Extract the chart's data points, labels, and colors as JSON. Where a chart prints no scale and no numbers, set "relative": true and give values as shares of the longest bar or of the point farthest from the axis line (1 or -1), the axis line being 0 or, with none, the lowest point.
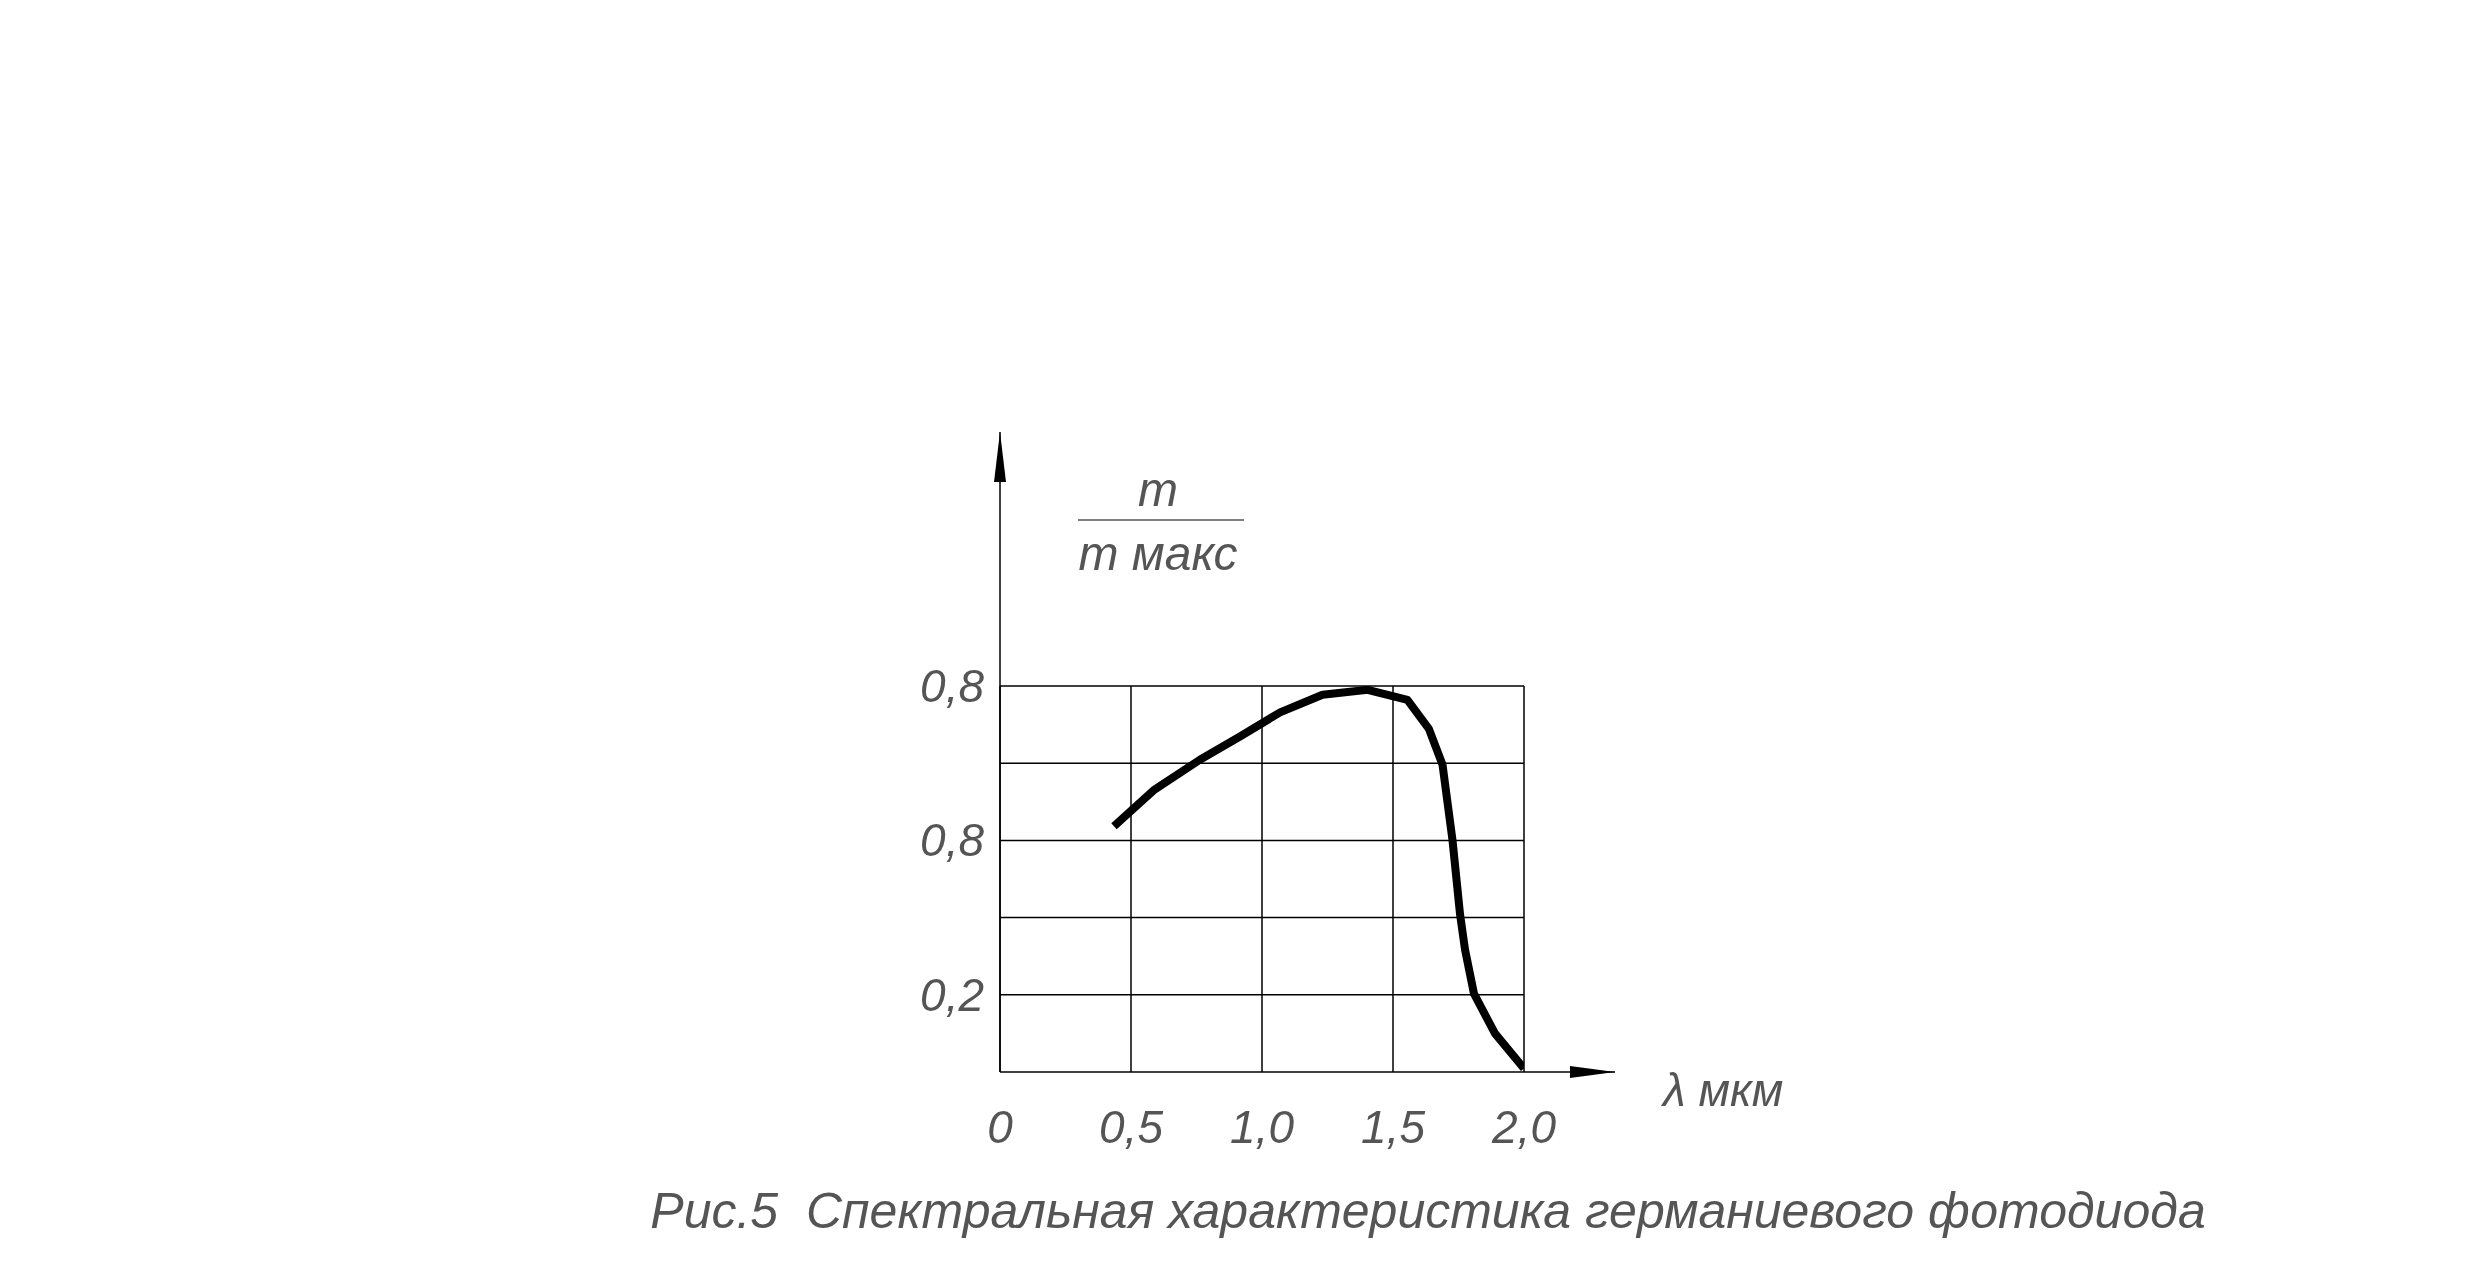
{
  "chart_data": {
    "type": "line",
    "xlabel": "λ мкм",
    "ylabel": "m/m макс",
    "relative": true,
    "annotations": [
      "0,2",
      "0,8",
      "0,8",
      "Рис.5  Спектральная характеристика германиевого фотодиода"
    ],
    "x": [
      0.435,
      0.59,
      0.763,
      0.916,
      1.069,
      1.231,
      1.403,
      1.555,
      1.637,
      1.689,
      1.727,
      1.756,
      1.775,
      1.809,
      1.889,
      2.0
    ],
    "series": [
      {
        "color": "#000000",
        "values": [
          0.643,
          0.739,
          0.817,
          0.878,
          0.941,
          0.987,
          1,
          0.974,
          0.898,
          0.804,
          0.607,
          0.412,
          0.32,
          0.205,
          0.101,
          0.009
        ]
      }
    ],
    "xlim": [
      0,
      2.0
    ],
    "xticks": [
      {
        "value": 0,
        "label": "0"
      },
      {
        "value": 0.5,
        "label": "0,5"
      },
      {
        "value": 1.0,
        "label": "1,0"
      },
      {
        "value": 1.5,
        "label": "1,5"
      },
      {
        "value": 2.0,
        "label": "2,0"
      }
    ],
    "grid": true,
    "marker": "none",
    "line_style": "solid"
  }
}
